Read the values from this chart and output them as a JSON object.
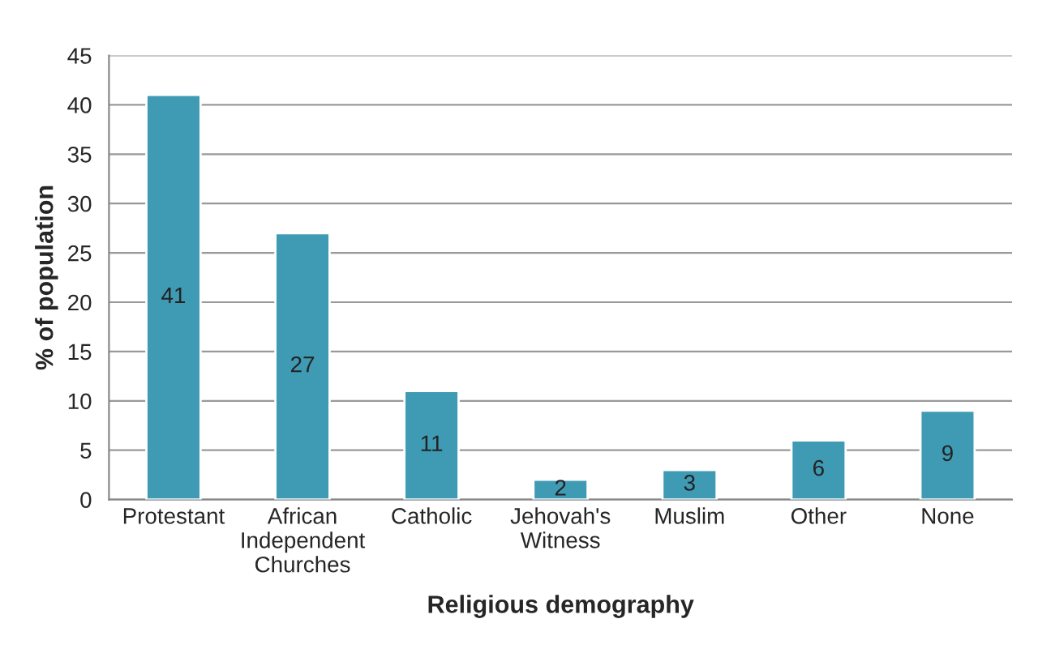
{
  "chart_data": {
    "type": "bar",
    "xlabel": "Religious demography",
    "ylabel": "% of population",
    "categories": [
      "Protestant",
      "African\nIndependent\nChurches",
      "Catholic",
      "Jehovah's\nWitness",
      "Muslim",
      "Other",
      "None"
    ],
    "values": [
      41,
      27,
      11,
      2,
      3,
      6,
      9
    ],
    "color": "#3f9ab4",
    "ylim": [
      0,
      45
    ],
    "yticks": [
      0,
      5,
      10,
      15,
      20,
      25,
      30,
      35,
      40,
      45
    ],
    "grid": "y",
    "data_labels": true
  }
}
